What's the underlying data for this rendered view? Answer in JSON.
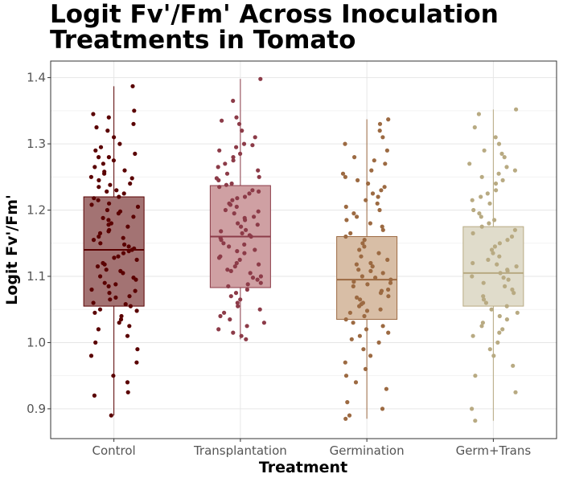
{
  "chart_data": {
    "type": "boxplot",
    "title_lines": [
      "Logit Fv'/Fm' Across Inoculation",
      "Treatments in Tomato"
    ],
    "xlabel": "Treatment",
    "ylabel": "Logit Fv'/Fm'",
    "ylim": [
      0.855,
      1.425
    ],
    "yticks": [
      0.9,
      1.0,
      1.1,
      1.2,
      1.3,
      1.4
    ],
    "ytick_labels": [
      "0.9",
      "1.0",
      "1.1",
      "1.2",
      "1.3",
      "1.4"
    ],
    "grid": true,
    "categories": [
      "Control",
      "Transplantation",
      "Germination",
      "Germ+Trans"
    ],
    "series": [
      {
        "category": "Control",
        "color": "#5a0000",
        "fill": "#a37373",
        "whisker_low": 0.89,
        "q1": 1.055,
        "median": 1.14,
        "q3": 1.22,
        "whisker_high": 1.387,
        "points": [
          1.387,
          1.35,
          1.345,
          1.34,
          1.33,
          1.325,
          1.32,
          1.31,
          1.3,
          1.295,
          1.29,
          1.285,
          1.28,
          1.28,
          1.275,
          1.27,
          1.265,
          1.26,
          1.258,
          1.255,
          1.25,
          1.248,
          1.245,
          1.24,
          1.238,
          1.235,
          1.23,
          1.228,
          1.225,
          1.22,
          1.218,
          1.215,
          1.21,
          1.208,
          1.205,
          1.2,
          1.198,
          1.195,
          1.19,
          1.188,
          1.185,
          1.18,
          1.178,
          1.175,
          1.17,
          1.168,
          1.165,
          1.16,
          1.158,
          1.155,
          1.15,
          1.148,
          1.145,
          1.142,
          1.14,
          1.138,
          1.135,
          1.13,
          1.128,
          1.125,
          1.12,
          1.118,
          1.115,
          1.11,
          1.108,
          1.105,
          1.1,
          1.098,
          1.095,
          1.09,
          1.088,
          1.085,
          1.08,
          1.078,
          1.075,
          1.07,
          1.068,
          1.065,
          1.06,
          1.058,
          1.055,
          1.05,
          1.048,
          1.045,
          1.04,
          1.035,
          1.03,
          1.025,
          1.02,
          1.01,
          1.0,
          0.99,
          0.98,
          0.97,
          0.95,
          0.94,
          0.925,
          0.92,
          0.89
        ]
      },
      {
        "category": "Transplantation",
        "color": "#8c3b48",
        "fill": "#cfa0a3",
        "whisker_low": 1.005,
        "q1": 1.083,
        "median": 1.16,
        "q3": 1.237,
        "whisker_high": 1.398,
        "points": [
          1.398,
          1.365,
          1.34,
          1.335,
          1.33,
          1.32,
          1.31,
          1.3,
          1.298,
          1.295,
          1.29,
          1.285,
          1.28,
          1.275,
          1.27,
          1.265,
          1.26,
          1.255,
          1.25,
          1.248,
          1.245,
          1.24,
          1.238,
          1.235,
          1.23,
          1.228,
          1.225,
          1.22,
          1.218,
          1.215,
          1.21,
          1.208,
          1.205,
          1.2,
          1.198,
          1.195,
          1.19,
          1.188,
          1.185,
          1.18,
          1.178,
          1.175,
          1.17,
          1.168,
          1.165,
          1.162,
          1.16,
          1.158,
          1.155,
          1.15,
          1.148,
          1.145,
          1.14,
          1.138,
          1.135,
          1.13,
          1.128,
          1.125,
          1.12,
          1.118,
          1.115,
          1.11,
          1.108,
          1.105,
          1.1,
          1.098,
          1.095,
          1.09,
          1.088,
          1.085,
          1.08,
          1.075,
          1.07,
          1.065,
          1.06,
          1.055,
          1.05,
          1.045,
          1.04,
          1.035,
          1.03,
          1.025,
          1.02,
          1.015,
          1.01,
          1.005
        ]
      },
      {
        "category": "Germination",
        "color": "#9c6a42",
        "fill": "#d8bea6",
        "whisker_low": 0.885,
        "q1": 1.035,
        "median": 1.095,
        "q3": 1.16,
        "whisker_high": 1.337,
        "points": [
          1.337,
          1.33,
          1.32,
          1.31,
          1.3,
          1.29,
          1.28,
          1.275,
          1.27,
          1.26,
          1.255,
          1.25,
          1.245,
          1.24,
          1.235,
          1.23,
          1.225,
          1.22,
          1.215,
          1.21,
          1.205,
          1.2,
          1.195,
          1.19,
          1.185,
          1.18,
          1.175,
          1.17,
          1.165,
          1.16,
          1.155,
          1.15,
          1.145,
          1.14,
          1.135,
          1.13,
          1.125,
          1.12,
          1.118,
          1.115,
          1.11,
          1.108,
          1.105,
          1.1,
          1.098,
          1.095,
          1.092,
          1.09,
          1.088,
          1.085,
          1.08,
          1.078,
          1.075,
          1.07,
          1.068,
          1.065,
          1.06,
          1.058,
          1.055,
          1.05,
          1.048,
          1.045,
          1.04,
          1.035,
          1.03,
          1.025,
          1.02,
          1.015,
          1.01,
          1.005,
          1.0,
          0.99,
          0.98,
          0.97,
          0.96,
          0.95,
          0.94,
          0.93,
          0.91,
          0.9,
          0.89,
          0.885
        ]
      },
      {
        "category": "Germ+Trans",
        "color": "#b8aa82",
        "fill": "#e0dccb",
        "whisker_low": 0.882,
        "q1": 1.055,
        "median": 1.105,
        "q3": 1.175,
        "whisker_high": 1.352,
        "points": [
          1.352,
          1.345,
          1.325,
          1.31,
          1.3,
          1.29,
          1.285,
          1.28,
          1.27,
          1.265,
          1.26,
          1.255,
          1.25,
          1.245,
          1.24,
          1.23,
          1.225,
          1.22,
          1.215,
          1.21,
          1.2,
          1.195,
          1.19,
          1.185,
          1.18,
          1.175,
          1.17,
          1.165,
          1.16,
          1.155,
          1.15,
          1.145,
          1.14,
          1.135,
          1.13,
          1.125,
          1.12,
          1.118,
          1.115,
          1.11,
          1.108,
          1.105,
          1.1,
          1.098,
          1.095,
          1.09,
          1.085,
          1.08,
          1.075,
          1.07,
          1.065,
          1.06,
          1.055,
          1.05,
          1.045,
          1.04,
          1.035,
          1.03,
          1.025,
          1.02,
          1.015,
          1.01,
          1.0,
          0.99,
          0.98,
          0.965,
          0.95,
          0.925,
          0.9,
          0.882
        ]
      }
    ]
  }
}
